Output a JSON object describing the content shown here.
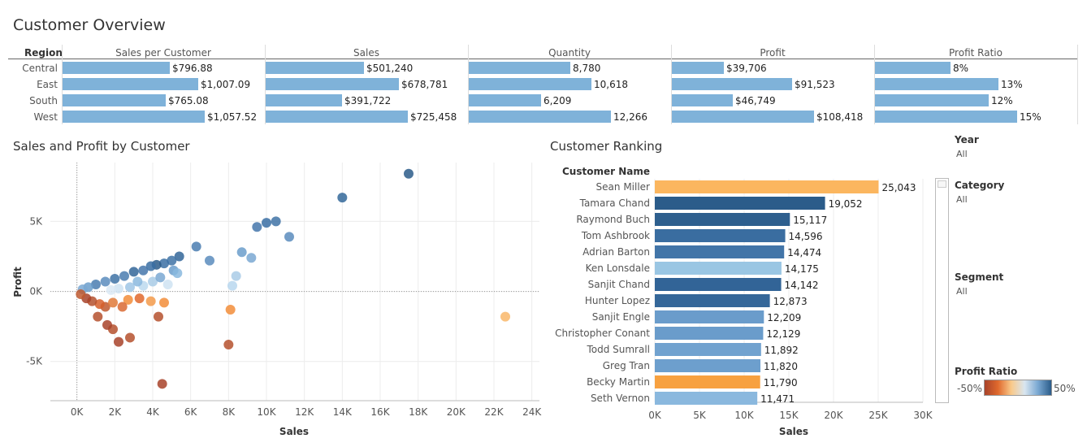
{
  "page_title": "Customer Overview",
  "overview": {
    "region_header": "Region",
    "columns": [
      "Sales per Customer",
      "Sales",
      "Quantity",
      "Profit",
      "Profit Ratio"
    ],
    "max_values": [
      1057.52,
      725458,
      12266,
      108418,
      0.15
    ],
    "rows": [
      {
        "region": "Central",
        "values": [
          796.88,
          501240,
          8780,
          39706,
          0.08
        ],
        "labels": [
          "$796.88",
          "$501,240",
          "8,780",
          "$39,706",
          "8%"
        ]
      },
      {
        "region": "East",
        "values": [
          1007.09,
          678781,
          10618,
          91523,
          0.13
        ],
        "labels": [
          "$1,007.09",
          "$678,781",
          "10,618",
          "$91,523",
          "13%"
        ]
      },
      {
        "region": "South",
        "values": [
          765.08,
          391722,
          6209,
          46749,
          0.12
        ],
        "labels": [
          "$765.08",
          "$391,722",
          "6,209",
          "$46,749",
          "12%"
        ]
      },
      {
        "region": "West",
        "values": [
          1057.52,
          725458,
          12266,
          108418,
          0.15
        ],
        "labels": [
          "$1,057.52",
          "$725,458",
          "12,266",
          "$108,418",
          "15%"
        ]
      }
    ]
  },
  "scatter": {
    "title": "Sales and Profit by Customer",
    "x_label": "Sales",
    "y_label": "Profit",
    "x_ticks": [
      "0K",
      "2K",
      "4K",
      "6K",
      "8K",
      "10K",
      "12K",
      "14K",
      "16K",
      "18K",
      "20K",
      "22K",
      "24K"
    ],
    "y_ticks": [
      "5K",
      "0K",
      "-5K"
    ]
  },
  "ranking": {
    "title": "Customer Ranking",
    "column_header": "Customer Name",
    "x_label": "Sales",
    "x_ticks": [
      "0K",
      "5K",
      "10K",
      "15K",
      "20K",
      "25K",
      "30K"
    ]
  },
  "chart_data": [
    {
      "type": "scatter",
      "title": "Sales and Profit by Customer",
      "xlabel": "Sales",
      "ylabel": "Profit",
      "xlim": [
        -1400,
        24400
      ],
      "ylim": [
        -7800,
        9200
      ],
      "colors_by": "Profit Ratio",
      "points": [
        {
          "x": 17500,
          "y": 8400,
          "c": "#2b5c8a"
        },
        {
          "x": 14000,
          "y": 6700,
          "c": "#34689a"
        },
        {
          "x": 10500,
          "y": 5000,
          "c": "#3f73a6"
        },
        {
          "x": 10000,
          "y": 4900,
          "c": "#3a6fa3"
        },
        {
          "x": 9500,
          "y": 4600,
          "c": "#4577ab"
        },
        {
          "x": 11200,
          "y": 3900,
          "c": "#5b8cbd"
        },
        {
          "x": 6300,
          "y": 3200,
          "c": "#4a7cb0"
        },
        {
          "x": 5400,
          "y": 2500,
          "c": "#336699"
        },
        {
          "x": 8700,
          "y": 2800,
          "c": "#6b9dcb"
        },
        {
          "x": 9200,
          "y": 2400,
          "c": "#7aa8d2"
        },
        {
          "x": 7000,
          "y": 2200,
          "c": "#5b8cbd"
        },
        {
          "x": 5000,
          "y": 2200,
          "c": "#3f73a6"
        },
        {
          "x": 4600,
          "y": 2000,
          "c": "#3a6fa3"
        },
        {
          "x": 5100,
          "y": 1500,
          "c": "#6b9dcb"
        },
        {
          "x": 8400,
          "y": 1100,
          "c": "#a9cbe6"
        },
        {
          "x": 8200,
          "y": 400,
          "c": "#b9d7ee"
        },
        {
          "x": 5300,
          "y": 1300,
          "c": "#8ab8de"
        },
        {
          "x": 4200,
          "y": 1900,
          "c": "#2b5c8a"
        },
        {
          "x": 3900,
          "y": 1800,
          "c": "#3a6fa3"
        },
        {
          "x": 3500,
          "y": 1500,
          "c": "#4577ab"
        },
        {
          "x": 3000,
          "y": 1400,
          "c": "#336699"
        },
        {
          "x": 2500,
          "y": 1100,
          "c": "#4a7cb0"
        },
        {
          "x": 2000,
          "y": 900,
          "c": "#3f73a6"
        },
        {
          "x": 1500,
          "y": 700,
          "c": "#5b8cbd"
        },
        {
          "x": 1000,
          "y": 500,
          "c": "#4a7cb0"
        },
        {
          "x": 600,
          "y": 300,
          "c": "#6b9dcb"
        },
        {
          "x": 300,
          "y": 150,
          "c": "#7aa8d2"
        },
        {
          "x": 4000,
          "y": 700,
          "c": "#a9cbe6"
        },
        {
          "x": 3500,
          "y": 400,
          "c": "#bcd9ef"
        },
        {
          "x": 4800,
          "y": 500,
          "c": "#cfe3f2"
        },
        {
          "x": 2800,
          "y": 300,
          "c": "#9fc5e5"
        },
        {
          "x": 2200,
          "y": 200,
          "c": "#cfe3f2"
        },
        {
          "x": 1800,
          "y": 100,
          "c": "#dbe9f4"
        },
        {
          "x": 4400,
          "y": 1000,
          "c": "#7aa8d2"
        },
        {
          "x": 3200,
          "y": 700,
          "c": "#8ab8de"
        },
        {
          "x": 22600,
          "y": -1800,
          "c": "#f9b76a"
        },
        {
          "x": 8100,
          "y": -1300,
          "c": "#f28d3a"
        },
        {
          "x": 8000,
          "y": -3800,
          "c": "#b5512e"
        },
        {
          "x": 4500,
          "y": -6600,
          "c": "#a8432a"
        },
        {
          "x": 4300,
          "y": -1800,
          "c": "#b5512e"
        },
        {
          "x": 4600,
          "y": -800,
          "c": "#f28d3a"
        },
        {
          "x": 3900,
          "y": -700,
          "c": "#f39a4a"
        },
        {
          "x": 2700,
          "y": -600,
          "c": "#f28d3a"
        },
        {
          "x": 3300,
          "y": -500,
          "c": "#e0692d"
        },
        {
          "x": 2800,
          "y": -3300,
          "c": "#b5512e"
        },
        {
          "x": 2200,
          "y": -3600,
          "c": "#a8432a"
        },
        {
          "x": 1900,
          "y": -2700,
          "c": "#b5512e"
        },
        {
          "x": 1600,
          "y": -2400,
          "c": "#a8432a"
        },
        {
          "x": 1100,
          "y": -1800,
          "c": "#b5512e"
        },
        {
          "x": 1500,
          "y": -1100,
          "c": "#c0592f"
        },
        {
          "x": 2400,
          "y": -1100,
          "c": "#d96a33"
        },
        {
          "x": 1900,
          "y": -800,
          "c": "#e07a38"
        },
        {
          "x": 1200,
          "y": -900,
          "c": "#d65f2c"
        },
        {
          "x": 800,
          "y": -700,
          "c": "#b5512e"
        },
        {
          "x": 500,
          "y": -500,
          "c": "#a8432a"
        },
        {
          "x": 200,
          "y": -200,
          "c": "#c0592f"
        }
      ]
    },
    {
      "type": "bar",
      "orientation": "horizontal",
      "title": "Customer Ranking",
      "xlabel": "Sales",
      "xlim": [
        0,
        30000
      ],
      "categories": [
        "Sean Miller",
        "Tamara Chand",
        "Raymond Buch",
        "Tom Ashbrook",
        "Adrian Barton",
        "Ken Lonsdale",
        "Sanjit Chand",
        "Hunter Lopez",
        "Sanjit Engle",
        "Christopher Conant",
        "Todd Sumrall",
        "Greg Tran",
        "Becky Martin",
        "Seth Vernon"
      ],
      "values": [
        25043,
        19052,
        15117,
        14596,
        14474,
        14175,
        14142,
        12873,
        12209,
        12129,
        11892,
        11820,
        11790,
        11471
      ],
      "labels": [
        "25,043",
        "19,052",
        "15,117",
        "14,596",
        "14,474",
        "14,175",
        "14,142",
        "12,873",
        "12,209",
        "12,129",
        "11,892",
        "11,820",
        "11,790",
        "11,471"
      ],
      "colors": [
        "#fbb65f",
        "#2b5c8a",
        "#2e5f8e",
        "#3a6da0",
        "#4275a8",
        "#9ac6e3",
        "#326497",
        "#356799",
        "#6a9ccb",
        "#6a9ccb",
        "#71a2cf",
        "#6d9fcd",
        "#f7a140",
        "#8ab8de"
      ]
    }
  ],
  "filters": {
    "year": {
      "title": "Year",
      "value": "All"
    },
    "category": {
      "title": "Category",
      "value": "All"
    },
    "segment": {
      "title": "Segment",
      "value": "All"
    }
  },
  "legend": {
    "title": "Profit Ratio",
    "min_label": "-50%",
    "max_label": "50%",
    "gradient": [
      "#a8432a",
      "#e0692d",
      "#f9c98a",
      "#d9e6f0",
      "#7aa8d2",
      "#2b5c8a"
    ]
  }
}
